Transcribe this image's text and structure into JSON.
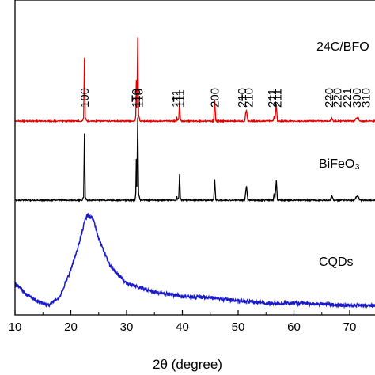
{
  "chart_data": {
    "type": "line",
    "xlabel": "2θ (degree)",
    "ylabel": "",
    "xlim": [
      10,
      75
    ],
    "xticks": [
      "10",
      "20",
      "30",
      "40",
      "50",
      "60",
      "70"
    ],
    "grid": false,
    "series": [
      {
        "name": "24C/BFO",
        "color": "#e00000",
        "points": [
          [
            10,
            0
          ],
          [
            22.0,
            0
          ],
          [
            22.3,
            4
          ],
          [
            22.45,
            92
          ],
          [
            22.6,
            4
          ],
          [
            22.9,
            0
          ],
          [
            31.5,
            0
          ],
          [
            31.65,
            8
          ],
          [
            31.75,
            60
          ],
          [
            31.85,
            20
          ],
          [
            32.0,
            120
          ],
          [
            32.15,
            10
          ],
          [
            32.4,
            0
          ],
          [
            38.9,
            0
          ],
          [
            39.0,
            6
          ],
          [
            39.1,
            1
          ],
          [
            39.35,
            3
          ],
          [
            39.5,
            28
          ],
          [
            39.65,
            3
          ],
          [
            39.9,
            0
          ],
          [
            45.6,
            0
          ],
          [
            45.8,
            31
          ],
          [
            46.0,
            0
          ],
          [
            51.2,
            0
          ],
          [
            51.35,
            12
          ],
          [
            51.5,
            16
          ],
          [
            51.75,
            0
          ],
          [
            56.3,
            0
          ],
          [
            56.45,
            8
          ],
          [
            56.6,
            3
          ],
          [
            56.85,
            24
          ],
          [
            57.05,
            0
          ],
          [
            66.5,
            0
          ],
          [
            66.8,
            4
          ],
          [
            67.1,
            0
          ],
          [
            70.8,
            0
          ],
          [
            71.1,
            3
          ],
          [
            71.5,
            5
          ],
          [
            71.8,
            0
          ],
          [
            75,
            0
          ]
        ],
        "peak_labels": [
          {
            "x": 22.45,
            "text": "100"
          },
          {
            "x": 31.7,
            "text": "110"
          },
          {
            "x": 32.2,
            "text": "1-10"
          },
          {
            "x": 38.9,
            "text": "111"
          },
          {
            "x": 39.6,
            "text": "1-11"
          },
          {
            "x": 45.8,
            "text": "200"
          },
          {
            "x": 50.7,
            "text": "210"
          },
          {
            "x": 51.9,
            "text": "2-10"
          },
          {
            "x": 56.1,
            "text": "211"
          },
          {
            "x": 57.0,
            "text": "2-11"
          },
          {
            "x": 66.3,
            "text": "220"
          },
          {
            "x": 67.8,
            "text": "2-20"
          },
          {
            "x": 69.6,
            "text": "221"
          },
          {
            "x": 71.3,
            "text": "300"
          },
          {
            "x": 72.9,
            "text": "310"
          }
        ]
      },
      {
        "name": "BiFeO₃",
        "color": "#000000",
        "points": [
          [
            10,
            0
          ],
          [
            22.0,
            0
          ],
          [
            22.3,
            4
          ],
          [
            22.45,
            96
          ],
          [
            22.6,
            4
          ],
          [
            22.9,
            0
          ],
          [
            31.5,
            0
          ],
          [
            31.65,
            10
          ],
          [
            31.75,
            60
          ],
          [
            31.85,
            20
          ],
          [
            32.0,
            118
          ],
          [
            32.15,
            10
          ],
          [
            32.4,
            0
          ],
          [
            38.9,
            0
          ],
          [
            39.0,
            6
          ],
          [
            39.1,
            1
          ],
          [
            39.35,
            3
          ],
          [
            39.5,
            38
          ],
          [
            39.65,
            3
          ],
          [
            39.9,
            0
          ],
          [
            45.6,
            0
          ],
          [
            45.8,
            30
          ],
          [
            46.0,
            0
          ],
          [
            51.2,
            0
          ],
          [
            51.35,
            12
          ],
          [
            51.5,
            20
          ],
          [
            51.75,
            0
          ],
          [
            56.3,
            0
          ],
          [
            56.45,
            10
          ],
          [
            56.6,
            3
          ],
          [
            56.85,
            28
          ],
          [
            57.05,
            0
          ],
          [
            66.5,
            0
          ],
          [
            66.8,
            6
          ],
          [
            67.1,
            0
          ],
          [
            70.8,
            0
          ],
          [
            71.1,
            4
          ],
          [
            71.5,
            6
          ],
          [
            71.8,
            0
          ],
          [
            75,
            0
          ]
        ]
      },
      {
        "name": "CQDs",
        "color": "#1a1acc",
        "points": [
          [
            10,
            20
          ],
          [
            12,
            10
          ],
          [
            14,
            4
          ],
          [
            16,
            0
          ],
          [
            18,
            8
          ],
          [
            20,
            32
          ],
          [
            21.5,
            56
          ],
          [
            22.5,
            76
          ],
          [
            23,
            82
          ],
          [
            24,
            78
          ],
          [
            25,
            60
          ],
          [
            27,
            36
          ],
          [
            30,
            20
          ],
          [
            35,
            12
          ],
          [
            40,
            8
          ],
          [
            45,
            7
          ],
          [
            50,
            4
          ],
          [
            55,
            2
          ],
          [
            60,
            2
          ],
          [
            65,
            1
          ],
          [
            70,
            0
          ],
          [
            75,
            0
          ]
        ]
      }
    ]
  }
}
